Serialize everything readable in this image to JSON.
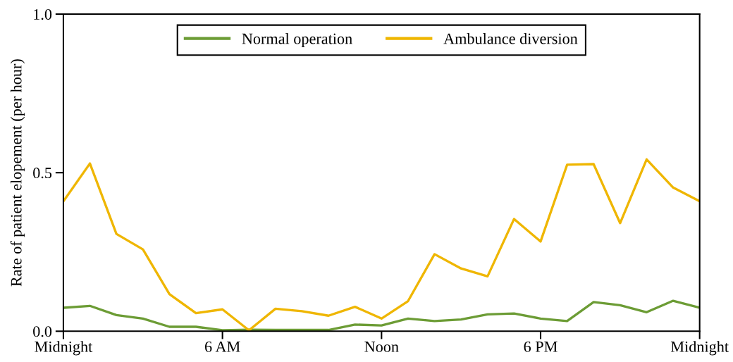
{
  "chart_data": {
    "type": "line",
    "ylabel": "Rate of patient elopement (per hour)",
    "categories": [
      "Midnight",
      null,
      null,
      null,
      null,
      null,
      "6 AM",
      null,
      null,
      null,
      null,
      null,
      "Noon",
      null,
      null,
      null,
      null,
      null,
      "6 PM",
      null,
      null,
      null,
      null,
      null,
      "Midnight"
    ],
    "ylim": [
      0,
      1
    ],
    "yticks": [
      {
        "value": 0,
        "label": "0.0"
      },
      {
        "value": 0.5,
        "label": "0.5"
      },
      {
        "value": 1,
        "label": "1.0"
      }
    ],
    "series": [
      {
        "name": "Normal operation",
        "color": "#6c9c35",
        "values": [
          0.074,
          0.08,
          0.051,
          0.04,
          0.014,
          0.014,
          0.003,
          0.005,
          0.004,
          0.004,
          0.004,
          0.021,
          0.018,
          0.04,
          0.032,
          0.037,
          0.053,
          0.056,
          0.04,
          0.032,
          0.092,
          0.082,
          0.06,
          0.096,
          0.074
        ]
      },
      {
        "name": "Ambulance diversion",
        "color": "#efb600",
        "values": [
          0.41,
          0.529,
          0.307,
          0.258,
          0.117,
          0.057,
          0.069,
          0.003,
          0.071,
          0.063,
          0.049,
          0.077,
          0.04,
          0.095,
          0.243,
          0.198,
          0.173,
          0.354,
          0.283,
          0.525,
          0.527,
          0.341,
          0.542,
          0.453,
          0.41
        ]
      }
    ],
    "legend": "top",
    "grid": false,
    "line_style": "solid"
  }
}
